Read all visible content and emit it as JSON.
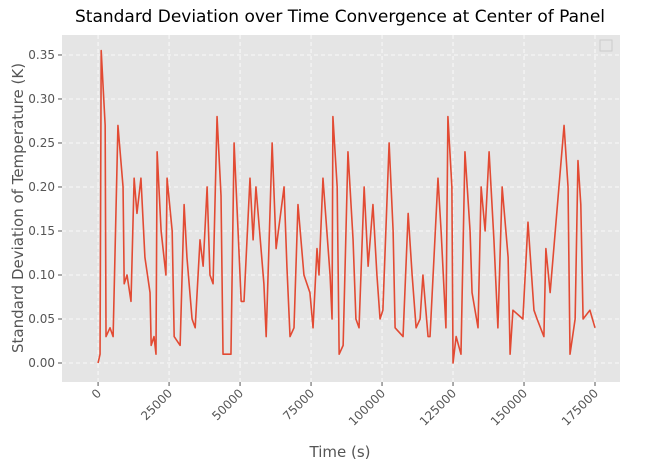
{
  "chart_data": {
    "type": "line",
    "title": "Standard Deviation over Time Convergence at Center of Panel",
    "x_label": "Time (s)",
    "y_label": "Standard Deviation of Temperature (K)",
    "x": [
      0,
      700,
      1100,
      2500,
      2800,
      4200,
      5300,
      7000,
      8800,
      9200,
      10200,
      11600,
      12700,
      13700,
      15100,
      16500,
      18300,
      18700,
      19700,
      20400,
      20800,
      22200,
      23900,
      24300,
      26100,
      26800,
      28900,
      30300,
      31300,
      33100,
      34200,
      35900,
      37000,
      38400,
      39400,
      40500,
      41900,
      43300,
      44000,
      46800,
      47900,
      49300,
      50400,
      51400,
      53500,
      54600,
      55600,
      58400,
      59200,
      61300,
      62700,
      65500,
      66500,
      67600,
      69000,
      70400,
      72500,
      74600,
      75700,
      77100,
      77800,
      79200,
      81700,
      82400,
      82700,
      84200,
      84900,
      86300,
      88000,
      89800,
      90800,
      91900,
      93700,
      95100,
      96800,
      98200,
      99300,
      100300,
      102500,
      103900,
      104600,
      107400,
      109200,
      110600,
      112000,
      113400,
      114400,
      116200,
      116900,
      119700,
      120800,
      122500,
      123200,
      124600,
      125000,
      126100,
      127800,
      129200,
      131000,
      131700,
      133800,
      134900,
      136300,
      137700,
      139400,
      140800,
      142300,
      144400,
      145100,
      146100,
      149600,
      151400,
      153500,
      154600,
      157000,
      157700,
      159200,
      164100,
      165500,
      166200,
      168000,
      169000,
      170000,
      170800,
      173200,
      175000
    ],
    "series": [
      {
        "color": "#e24a33",
        "values": [
          0.0,
          0.01,
          0.355,
          0.27,
          0.03,
          0.04,
          0.03,
          0.27,
          0.2,
          0.09,
          0.1,
          0.07,
          0.21,
          0.17,
          0.21,
          0.12,
          0.08,
          0.02,
          0.03,
          0.01,
          0.24,
          0.15,
          0.1,
          0.21,
          0.15,
          0.03,
          0.02,
          0.18,
          0.12,
          0.05,
          0.04,
          0.14,
          0.11,
          0.2,
          0.1,
          0.09,
          0.28,
          0.19,
          0.01,
          0.01,
          0.25,
          0.15,
          0.07,
          0.07,
          0.21,
          0.14,
          0.2,
          0.09,
          0.03,
          0.25,
          0.13,
          0.2,
          0.11,
          0.03,
          0.04,
          0.18,
          0.1,
          0.08,
          0.04,
          0.13,
          0.1,
          0.21,
          0.1,
          0.05,
          0.28,
          0.2,
          0.01,
          0.02,
          0.24,
          0.14,
          0.05,
          0.04,
          0.2,
          0.11,
          0.18,
          0.1,
          0.05,
          0.06,
          0.25,
          0.15,
          0.04,
          0.03,
          0.17,
          0.1,
          0.04,
          0.05,
          0.1,
          0.03,
          0.03,
          0.21,
          0.15,
          0.04,
          0.28,
          0.2,
          0.0,
          0.03,
          0.01,
          0.24,
          0.15,
          0.08,
          0.04,
          0.2,
          0.15,
          0.24,
          0.14,
          0.04,
          0.2,
          0.12,
          0.01,
          0.06,
          0.05,
          0.16,
          0.06,
          0.05,
          0.03,
          0.13,
          0.08,
          0.27,
          0.2,
          0.01,
          0.05,
          0.23,
          0.18,
          0.05,
          0.06,
          0.04
        ]
      }
    ],
    "xlim": [
      -12700,
      183800
    ],
    "xticks": [
      0,
      25000,
      50000,
      75000,
      100000,
      125000,
      150000,
      175000
    ],
    "ylim": [
      -0.0216,
      0.3727
    ],
    "yticks": [
      {
        "value": 0,
        "label": "0.00"
      },
      {
        "value": 0.05,
        "label": "0.05"
      },
      {
        "value": 0.1,
        "label": "0.10"
      },
      {
        "value": 0.15,
        "label": "0.15"
      },
      {
        "value": 0.2,
        "label": "0.20"
      },
      {
        "value": 0.25,
        "label": "0.25"
      },
      {
        "value": 0.3,
        "label": "0.30"
      },
      {
        "value": 0.35,
        "label": "0.35"
      }
    ],
    "grid": true
  }
}
